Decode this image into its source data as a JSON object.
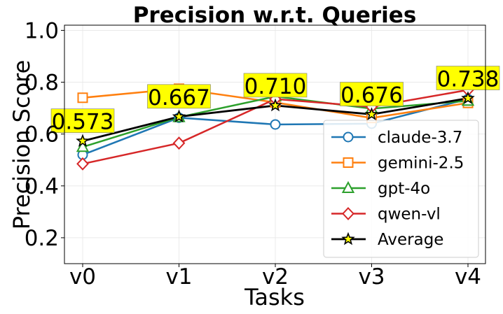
{
  "chart_data": {
    "type": "line",
    "title": "Precision w.r.t. Queries",
    "xlabel": "Tasks",
    "ylabel": "Precision Score",
    "categories": [
      "v0",
      "v1",
      "v2",
      "v3",
      "v4"
    ],
    "ylim": [
      0.1,
      1.02
    ],
    "yticks": [
      "0.2",
      "0.4",
      "0.6",
      "0.8",
      "1.0"
    ],
    "grid": true,
    "legend_position": "lower-right",
    "series": [
      {
        "name": "claude-3.7",
        "color": "#1f77b4",
        "marker": "circle",
        "values": [
          0.52,
          0.663,
          0.637,
          0.64,
          0.735
        ]
      },
      {
        "name": "gemini-2.5",
        "color": "#ff7f0e",
        "marker": "square",
        "values": [
          0.74,
          0.775,
          0.722,
          0.662,
          0.72
        ]
      },
      {
        "name": "gpt-4o",
        "color": "#2ca02c",
        "marker": "triangle",
        "values": [
          0.55,
          0.665,
          0.745,
          0.698,
          0.728
        ]
      },
      {
        "name": "qwen-vl",
        "color": "#d62728",
        "marker": "diamond",
        "values": [
          0.485,
          0.565,
          0.735,
          0.705,
          0.77
        ]
      },
      {
        "name": "Average",
        "color": "#000000",
        "marker": "star",
        "marker_fill": "#ffff00",
        "values": [
          0.573,
          0.667,
          0.71,
          0.676,
          0.738
        ]
      }
    ],
    "data_labels": [
      "0.573",
      "0.667",
      "0.710",
      "0.676",
      "0.738"
    ],
    "data_label_bg": "#ffff00"
  }
}
